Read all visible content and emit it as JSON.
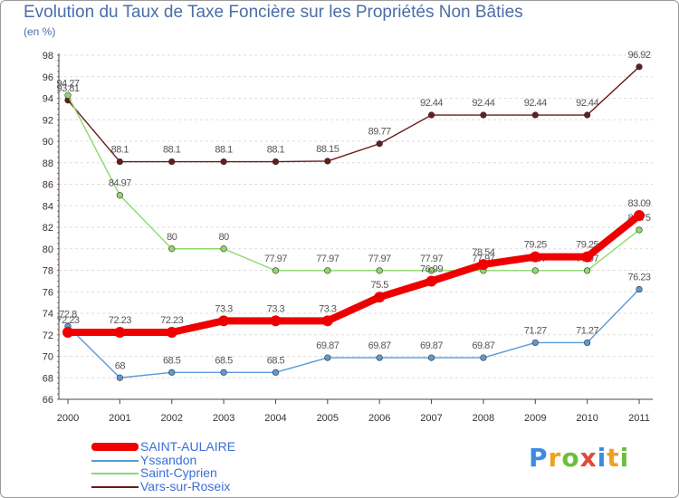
{
  "chart_data": {
    "type": "line",
    "title": "Evolution du Taux de Taxe Foncière sur les Propriétés Non Bâties",
    "ylabel": "(en %)",
    "xlabel": "",
    "ylim": [
      66,
      98
    ],
    "yticks": [
      66,
      68,
      70,
      72,
      74,
      76,
      78,
      80,
      82,
      84,
      86,
      88,
      90,
      92,
      94,
      96,
      98
    ],
    "categories": [
      "2000",
      "2001",
      "2002",
      "2003",
      "2004",
      "2005",
      "2006",
      "2007",
      "2008",
      "2009",
      "2010",
      "2011"
    ],
    "legend_position": "bottom-left",
    "grid": "horizontal",
    "series": [
      {
        "name": "Vars-sur-Roseix",
        "color": "#6b1a1a",
        "values": [
          93.81,
          88.1,
          88.1,
          88.1,
          88.1,
          88.15,
          89.77,
          92.44,
          92.44,
          92.44,
          92.44,
          96.92
        ],
        "labels": [
          "93.81",
          "88.1",
          "88.1",
          "88.1",
          "88.1",
          "88.15",
          "89.77",
          "92.44",
          "92.44",
          "92.44",
          "92.44",
          "96.92"
        ]
      },
      {
        "name": "Saint-Cyprien",
        "color": "#8ed96a",
        "values": [
          94.27,
          84.97,
          80,
          80,
          77.97,
          77.97,
          77.97,
          77.97,
          77.97,
          77.97,
          77.97,
          81.75
        ],
        "labels": [
          "94.27",
          "84.97",
          "80",
          "80",
          "77.97",
          "77.97",
          "77.97",
          "77.97",
          "77.97",
          "77.97",
          "77.97",
          "81.75"
        ]
      },
      {
        "name": "Yssandon",
        "color": "#5b9ad6",
        "values": [
          72.8,
          68,
          68.5,
          68.5,
          68.5,
          69.87,
          69.87,
          69.87,
          69.87,
          71.27,
          71.27,
          76.23
        ],
        "labels": [
          "72.8",
          "68",
          "68.5",
          "68.5",
          "68.5",
          "69.87",
          "69.87",
          "69.87",
          "69.87",
          "71.27",
          "71.27",
          "76.23"
        ]
      },
      {
        "name": "SAINT-AULAIRE",
        "color": "#ee0000",
        "values": [
          72.23,
          72.23,
          72.23,
          73.3,
          73.3,
          73.3,
          75.5,
          76.99,
          78.54,
          79.25,
          79.25,
          83.09
        ],
        "labels": [
          "72.23",
          "72.23",
          "72.23",
          "73.3",
          "73.3",
          "73.3",
          "75.5",
          "76.99",
          "78.54",
          "79.25",
          "79.25",
          "83.09"
        ]
      }
    ],
    "legend": [
      "SAINT-AULAIRE",
      "Yssandon",
      "Saint-Cyprien",
      "Vars-sur-Roseix"
    ]
  },
  "logo": {
    "parts": [
      "P",
      "r",
      "o",
      "x",
      "i",
      "t",
      "i"
    ]
  }
}
